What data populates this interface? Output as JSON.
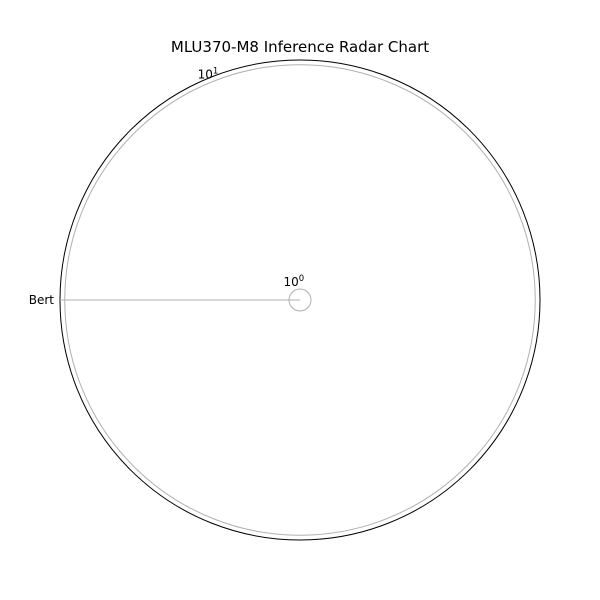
{
  "chart_data": {
    "type": "radar",
    "title": "MLU370-M8 Inference Radar Chart",
    "categories": [
      "Bert"
    ],
    "radial_scale": "log",
    "radial_ticks": [
      {
        "base": "10",
        "exp": "0",
        "value": 1
      },
      {
        "base": "10",
        "exp": "1",
        "value": 10
      }
    ],
    "rlim": [
      1,
      10.5
    ],
    "series": [],
    "grid": true,
    "colors": {
      "frame": "#000000",
      "grid": "#b0b0b0",
      "text": "#000000"
    }
  }
}
